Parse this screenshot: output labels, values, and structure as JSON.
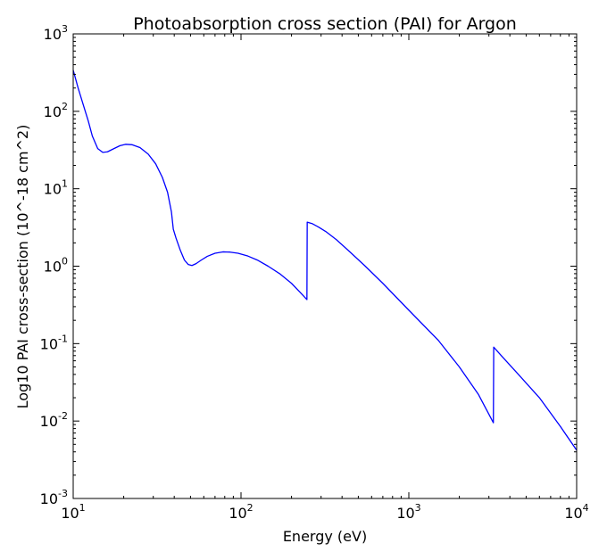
{
  "chart_data": {
    "type": "line",
    "title": "Photoabsorption cross section (PAI) for Argon",
    "xlabel": "Energy (eV)",
    "ylabel": "Log10 PAI cross-section (10^-18 cm^2)",
    "xscale": "log",
    "yscale": "log",
    "xlim": [
      10,
      10000
    ],
    "ylim": [
      0.001,
      1000
    ],
    "grid": false,
    "x_ticks": [
      {
        "value": 10,
        "base": "10",
        "exp": "1"
      },
      {
        "value": 100,
        "base": "10",
        "exp": "2"
      },
      {
        "value": 1000,
        "base": "10",
        "exp": "3"
      },
      {
        "value": 10000,
        "base": "10",
        "exp": "4"
      }
    ],
    "y_ticks": [
      {
        "value": 0.001,
        "base": "10",
        "exp": "-3"
      },
      {
        "value": 0.01,
        "base": "10",
        "exp": "-2"
      },
      {
        "value": 0.1,
        "base": "10",
        "exp": "-1"
      },
      {
        "value": 1,
        "base": "10",
        "exp": "0"
      },
      {
        "value": 10,
        "base": "10",
        "exp": "1"
      },
      {
        "value": 100,
        "base": "10",
        "exp": "2"
      },
      {
        "value": 1000,
        "base": "10",
        "exp": "3"
      }
    ],
    "series": [
      {
        "color": "#0000ff",
        "points": [
          [
            10.0,
            340
          ],
          [
            10.7,
            200
          ],
          [
            11.5,
            120
          ],
          [
            12.3,
            75
          ],
          [
            13.0,
            48
          ],
          [
            14.0,
            33
          ],
          [
            15.0,
            29.5
          ],
          [
            16.0,
            30
          ],
          [
            17.5,
            33
          ],
          [
            19.0,
            36
          ],
          [
            20.5,
            37.5
          ],
          [
            22.5,
            37
          ],
          [
            25.0,
            34
          ],
          [
            28.0,
            28
          ],
          [
            31.0,
            21
          ],
          [
            34.0,
            14
          ],
          [
            36.5,
            9
          ],
          [
            38.5,
            5
          ],
          [
            39.5,
            3
          ],
          [
            41.0,
            2.3
          ],
          [
            43.5,
            1.6
          ],
          [
            46.0,
            1.2
          ],
          [
            48.5,
            1.05
          ],
          [
            51.0,
            1.02
          ],
          [
            54.0,
            1.08
          ],
          [
            58.0,
            1.2
          ],
          [
            63.0,
            1.34
          ],
          [
            70.0,
            1.47
          ],
          [
            78.0,
            1.53
          ],
          [
            86.0,
            1.52
          ],
          [
            96.0,
            1.47
          ],
          [
            110.0,
            1.35
          ],
          [
            125.0,
            1.2
          ],
          [
            145.0,
            1.0
          ],
          [
            170.0,
            0.8
          ],
          [
            200.0,
            0.6
          ],
          [
            225.0,
            0.46
          ],
          [
            247.0,
            0.37
          ],
          [
            248.0,
            3.7
          ],
          [
            265.0,
            3.55
          ],
          [
            290.0,
            3.2
          ],
          [
            320.0,
            2.8
          ],
          [
            370.0,
            2.2
          ],
          [
            450.0,
            1.5
          ],
          [
            550.0,
            1.0
          ],
          [
            700.0,
            0.6
          ],
          [
            1000.0,
            0.27
          ],
          [
            1500.0,
            0.11
          ],
          [
            2000.0,
            0.05
          ],
          [
            2600.0,
            0.022
          ],
          [
            3190.0,
            0.0095
          ],
          [
            3205.0,
            0.09
          ],
          [
            3600.0,
            0.068
          ],
          [
            4500.0,
            0.04
          ],
          [
            6000.0,
            0.02
          ],
          [
            8000.0,
            0.0085
          ],
          [
            10000.0,
            0.0042
          ]
        ]
      }
    ]
  }
}
